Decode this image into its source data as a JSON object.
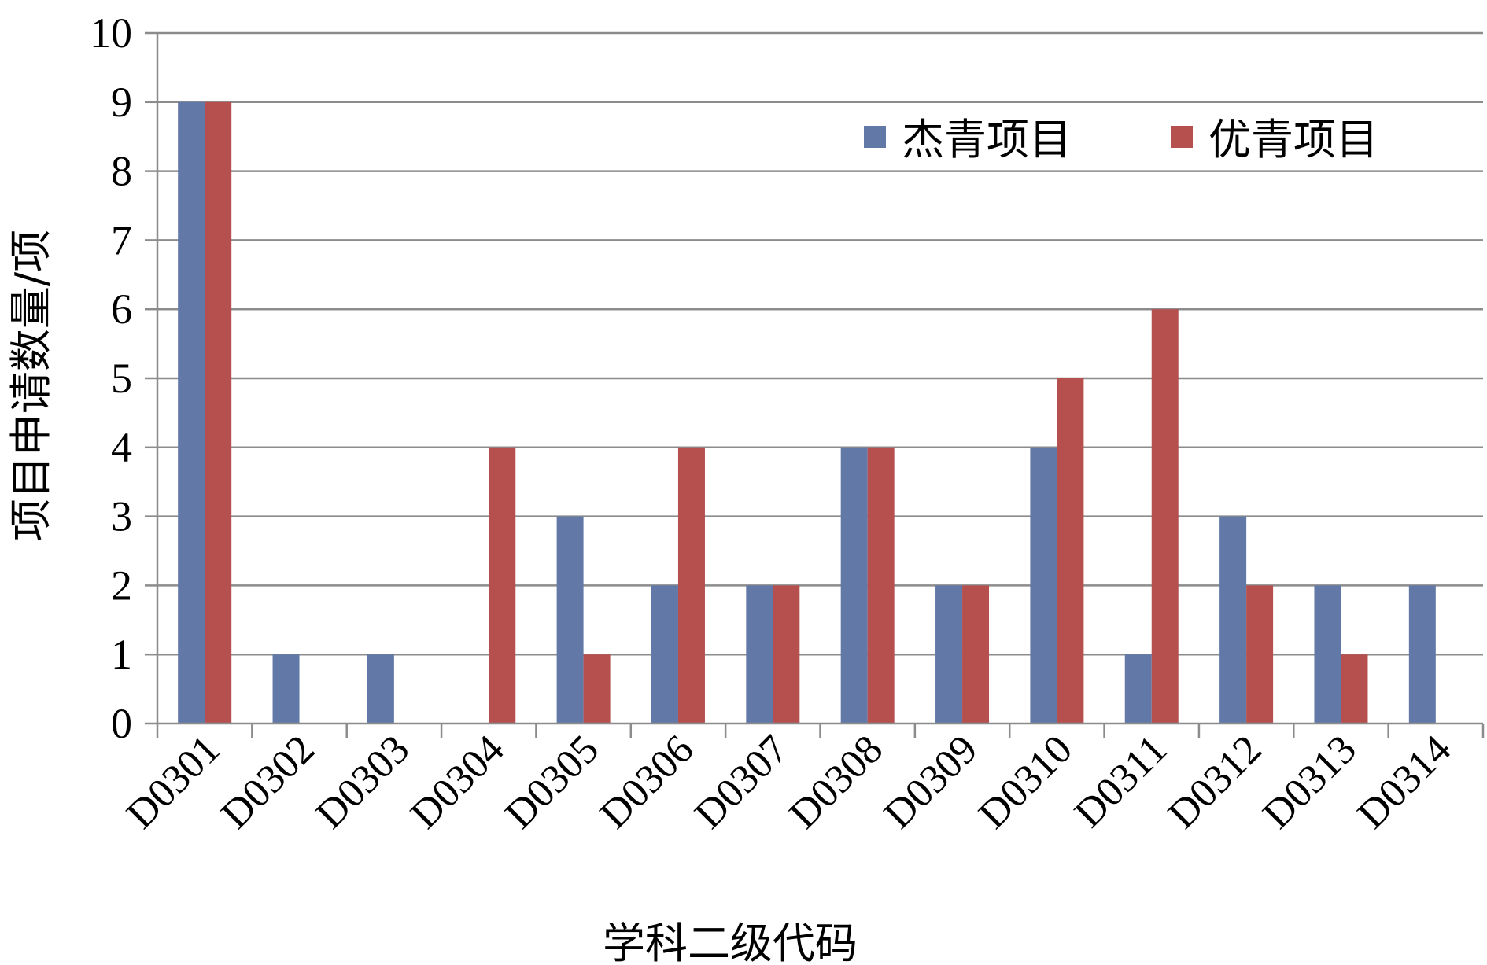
{
  "chart_data": {
    "type": "bar",
    "xlabel": "学科二级代码",
    "ylabel": "项目申请数量/项",
    "ylim": [
      0,
      10
    ],
    "yticks": [
      0,
      1,
      2,
      3,
      4,
      5,
      6,
      7,
      8,
      9,
      10
    ],
    "grid": true,
    "legend_position": "top-right",
    "categories": [
      "D0301",
      "D0302",
      "D0303",
      "D0304",
      "D0305",
      "D0306",
      "D0307",
      "D0308",
      "D0309",
      "D0310",
      "D0311",
      "D0312",
      "D0313",
      "D0314"
    ],
    "series": [
      {
        "name": "杰青项目",
        "color": "#6279A8",
        "values": [
          9,
          1,
          1,
          0,
          3,
          2,
          2,
          4,
          2,
          4,
          1,
          3,
          2,
          2
        ]
      },
      {
        "name": "优青项目",
        "color": "#B5504E",
        "values": [
          9,
          0,
          0,
          4,
          1,
          4,
          2,
          4,
          2,
          5,
          6,
          2,
          1,
          0
        ]
      }
    ]
  }
}
